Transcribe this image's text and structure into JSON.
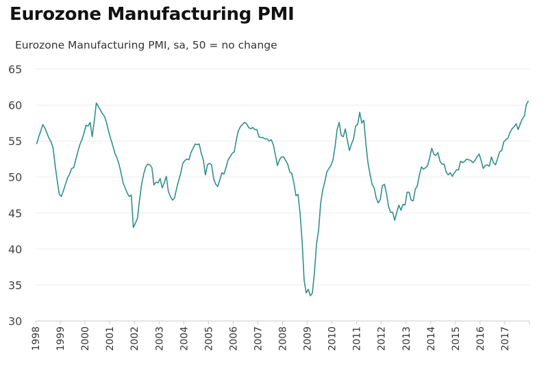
{
  "title": "Eurozone Manufacturing PMI",
  "subtitle": "Eurozone Manufacturing PMI, sa, 50 = no change",
  "colors": {
    "line": "#2e8f88",
    "grid": "#ebebeb",
    "axis": "#c8c8c8"
  },
  "chart_data": {
    "type": "line",
    "title": "Eurozone Manufacturing PMI",
    "subtitle": "Eurozone Manufacturing PMI, sa, 50 = no change",
    "xlabel": "",
    "ylabel": "",
    "ylim": [
      30,
      65
    ],
    "yticks": [
      30,
      35,
      40,
      45,
      50,
      55,
      60,
      65
    ],
    "xlim": [
      "1998-01",
      "2018-01"
    ],
    "xticks": [
      "1998",
      "1999",
      "2000",
      "2001",
      "2002",
      "2003",
      "2004",
      "2005",
      "2006",
      "2007",
      "2008",
      "2009",
      "2010",
      "2011",
      "2012",
      "2013",
      "2014",
      "2015",
      "2016",
      "2017"
    ],
    "grid": "horizontal",
    "legend": "none",
    "frequency": "monthly",
    "start": "1998-01",
    "series": [
      {
        "name": "Eurozone Manufacturing PMI",
        "values": [
          54.6,
          55.6,
          56.4,
          57.3,
          56.8,
          56.1,
          55.4,
          54.9,
          54.0,
          51.6,
          49.5,
          47.6,
          47.3,
          48.1,
          49.0,
          49.9,
          50.4,
          51.2,
          51.3,
          52.4,
          53.5,
          54.5,
          55.2,
          56.1,
          57.2,
          57.1,
          57.6,
          55.6,
          57.8,
          60.3,
          59.8,
          59.3,
          58.8,
          58.4,
          57.5,
          56.3,
          55.3,
          54.4,
          53.3,
          52.7,
          51.8,
          50.6,
          49.2,
          48.5,
          47.8,
          47.3,
          47.5,
          43.0,
          43.6,
          44.3,
          46.8,
          49.0,
          50.4,
          51.4,
          51.8,
          51.7,
          51.3,
          48.9,
          49.3,
          49.2,
          49.8,
          48.5,
          49.2,
          50.1,
          48.0,
          47.3,
          46.8,
          47.1,
          48.4,
          49.5,
          50.5,
          51.9,
          52.3,
          52.5,
          52.4,
          53.4,
          54.0,
          54.6,
          54.5,
          54.6,
          53.3,
          52.4,
          50.3,
          51.7,
          51.9,
          51.7,
          49.8,
          49.0,
          48.7,
          49.6,
          50.6,
          50.4,
          51.3,
          52.4,
          52.8,
          53.3,
          53.5,
          55.1,
          56.4,
          57.0,
          57.3,
          57.6,
          57.4,
          56.9,
          56.7,
          56.9,
          56.6,
          56.6,
          55.6,
          55.5,
          55.5,
          55.3,
          55.3,
          55.0,
          55.2,
          54.5,
          53.1,
          51.6,
          52.4,
          52.8,
          52.8,
          52.3,
          51.8,
          50.7,
          50.5,
          49.2,
          47.4,
          47.6,
          45.0,
          41.1,
          35.6,
          33.9,
          34.4,
          33.5,
          33.9,
          36.8,
          40.7,
          42.6,
          46.3,
          48.2,
          49.3,
          50.7,
          51.2,
          51.6,
          52.4,
          54.2,
          56.6,
          57.6,
          55.8,
          55.6,
          56.7,
          55.1,
          53.7,
          54.6,
          55.3,
          57.1,
          57.3,
          59.0,
          57.5,
          57.9,
          54.6,
          52.0,
          50.4,
          49.0,
          48.5,
          47.1,
          46.4,
          46.9,
          48.8,
          49.0,
          47.7,
          45.9,
          45.1,
          45.1,
          44.0,
          45.1,
          46.1,
          45.4,
          46.2,
          46.1,
          47.9,
          47.9,
          46.8,
          46.7,
          48.3,
          48.8,
          50.3,
          51.4,
          51.1,
          51.3,
          51.6,
          52.7,
          54.0,
          53.2,
          53.0,
          53.4,
          52.2,
          51.8,
          51.8,
          50.7,
          50.3,
          50.6,
          50.1,
          50.6,
          51.0,
          51.0,
          52.2,
          52.0,
          52.2,
          52.5,
          52.4,
          52.3,
          52.0,
          52.3,
          52.8,
          53.2,
          52.3,
          51.2,
          51.6,
          51.7,
          51.5,
          52.8,
          52.0,
          51.7,
          52.6,
          53.5,
          53.7,
          54.9,
          55.2,
          55.4,
          56.2,
          56.7,
          57.0,
          57.4,
          56.6,
          57.4,
          58.1,
          58.5,
          60.1,
          60.6
        ]
      }
    ]
  }
}
